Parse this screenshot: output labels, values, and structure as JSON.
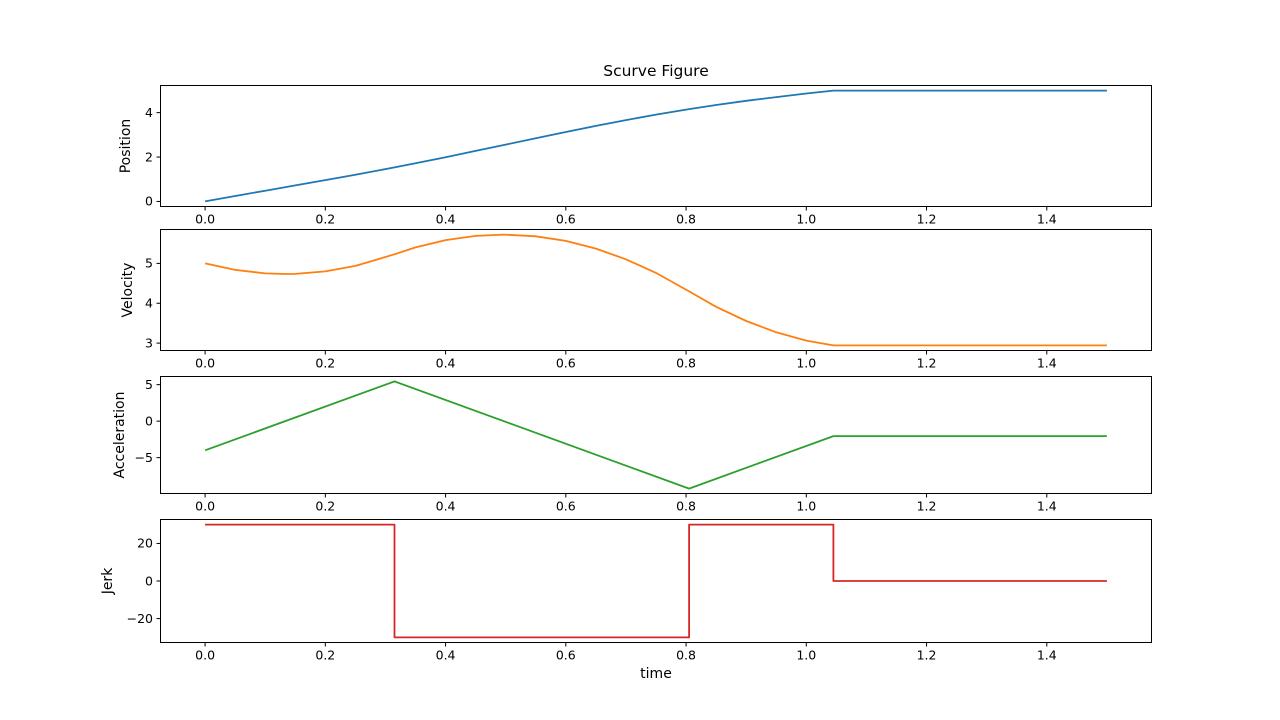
{
  "figure": {
    "title": "Scurve Figure",
    "xlabel": "time",
    "background_color": "#ffffff",
    "spine_color": "#000000"
  },
  "chart_data": [
    {
      "id": "position",
      "type": "line",
      "ylabel": "Position",
      "color": "#1f77b4",
      "xlim": [
        -0.075,
        1.575
      ],
      "ylim": [
        -0.25,
        5.245
      ],
      "xticks": [
        0.0,
        0.2,
        0.4,
        0.6,
        0.8,
        1.0,
        1.2,
        1.4
      ],
      "xtick_labels": [
        "0.0",
        "0.2",
        "0.4",
        "0.6",
        "0.8",
        "1.0",
        "1.2",
        "1.4"
      ],
      "yticks": [
        0,
        2,
        4
      ],
      "ytick_labels": [
        "0",
        "2",
        "4"
      ],
      "points": [
        [
          0,
          0
        ],
        [
          0.05,
          0.2456
        ],
        [
          0.1,
          0.485
        ],
        [
          0.135,
          0.6509
        ],
        [
          0.15,
          0.7219
        ],
        [
          0.2,
          0.96
        ],
        [
          0.25,
          1.2031
        ],
        [
          0.315,
          1.5328
        ],
        [
          0.35,
          1.7189
        ],
        [
          0.4,
          1.9938
        ],
        [
          0.45,
          2.276
        ],
        [
          0.497,
          2.5445
        ],
        [
          0.55,
          2.8471
        ],
        [
          0.6,
          3.1285
        ],
        [
          0.65,
          3.4021
        ],
        [
          0.7,
          3.6645
        ],
        [
          0.75,
          3.9114
        ],
        [
          0.805,
          4.1607
        ],
        [
          0.85,
          4.3452
        ],
        [
          0.9,
          4.5315
        ],
        [
          0.95,
          4.7019
        ],
        [
          1.0,
          4.8599
        ],
        [
          1.045,
          4.9948
        ],
        [
          1.1,
          4.9948
        ],
        [
          1.2,
          4.9948
        ],
        [
          1.3,
          4.9948
        ],
        [
          1.4,
          4.9948
        ],
        [
          1.5,
          4.9948
        ]
      ]
    },
    {
      "id": "velocity",
      "type": "line",
      "ylabel": "Velocity",
      "color": "#ff7f0e",
      "xlim": [
        -0.075,
        1.575
      ],
      "ylim": [
        2.802,
        5.863
      ],
      "xticks": [
        0.0,
        0.2,
        0.4,
        0.6,
        0.8,
        1.0,
        1.2,
        1.4
      ],
      "xtick_labels": [
        "0.0",
        "0.2",
        "0.4",
        "0.6",
        "0.8",
        "1.0",
        "1.2",
        "1.4"
      ],
      "yticks": [
        3,
        4,
        5
      ],
      "ytick_labels": [
        "3",
        "4",
        "5"
      ],
      "points": [
        [
          0,
          5
        ],
        [
          0.05,
          4.8375
        ],
        [
          0.1,
          4.75
        ],
        [
          0.135,
          4.7334
        ],
        [
          0.15,
          4.7375
        ],
        [
          0.2,
          4.8
        ],
        [
          0.25,
          4.9375
        ],
        [
          0.315,
          5.2284
        ],
        [
          0.35,
          5.4008
        ],
        [
          0.4,
          5.5833
        ],
        [
          0.45,
          5.6908
        ],
        [
          0.497,
          5.7234
        ],
        [
          0.55,
          5.6808
        ],
        [
          0.6,
          5.5633
        ],
        [
          0.65,
          5.3708
        ],
        [
          0.7,
          5.1033
        ],
        [
          0.75,
          4.7608
        ],
        [
          0.805,
          4.2974
        ],
        [
          0.85,
          3.9115
        ],
        [
          0.9,
          3.554
        ],
        [
          0.95,
          3.2715
        ],
        [
          1.0,
          3.064
        ],
        [
          1.045,
          2.9414
        ],
        [
          1.1,
          2.9414
        ],
        [
          1.2,
          2.9414
        ],
        [
          1.3,
          2.9414
        ],
        [
          1.4,
          2.9414
        ],
        [
          1.5,
          2.9414
        ]
      ]
    },
    {
      "id": "acceleration",
      "type": "line",
      "ylabel": "Acceleration",
      "color": "#2ca02c",
      "xlim": [
        -0.075,
        1.575
      ],
      "ylim": [
        -9.985,
        6.185
      ],
      "xticks": [
        0.0,
        0.2,
        0.4,
        0.6,
        0.8,
        1.0,
        1.2,
        1.4
      ],
      "xtick_labels": [
        "0.0",
        "0.2",
        "0.4",
        "0.6",
        "0.8",
        "1.0",
        "1.2",
        "1.4"
      ],
      "yticks": [
        -5,
        0,
        5
      ],
      "ytick_labels": [
        "−5",
        "0",
        "5"
      ],
      "points": [
        [
          0,
          -4
        ],
        [
          0.315,
          5.45
        ],
        [
          0.805,
          -9.25
        ],
        [
          1.045,
          -2.05
        ],
        [
          1.5,
          -2.05
        ]
      ]
    },
    {
      "id": "jerk",
      "type": "line",
      "ylabel": "Jerk",
      "color": "#d62728",
      "xlim": [
        -0.075,
        1.575
      ],
      "ylim": [
        -33,
        33
      ],
      "xticks": [
        0.0,
        0.2,
        0.4,
        0.6,
        0.8,
        1.0,
        1.2,
        1.4
      ],
      "xtick_labels": [
        "0.0",
        "0.2",
        "0.4",
        "0.6",
        "0.8",
        "1.0",
        "1.2",
        "1.4"
      ],
      "yticks": [
        -20,
        0,
        20
      ],
      "ytick_labels": [
        "−20",
        "0",
        "20"
      ],
      "points": [
        [
          0,
          30
        ],
        [
          0.315,
          30
        ],
        [
          0.315,
          -30
        ],
        [
          0.805,
          -30
        ],
        [
          0.805,
          30
        ],
        [
          1.045,
          30
        ],
        [
          1.045,
          0
        ],
        [
          1.5,
          0
        ]
      ]
    }
  ]
}
